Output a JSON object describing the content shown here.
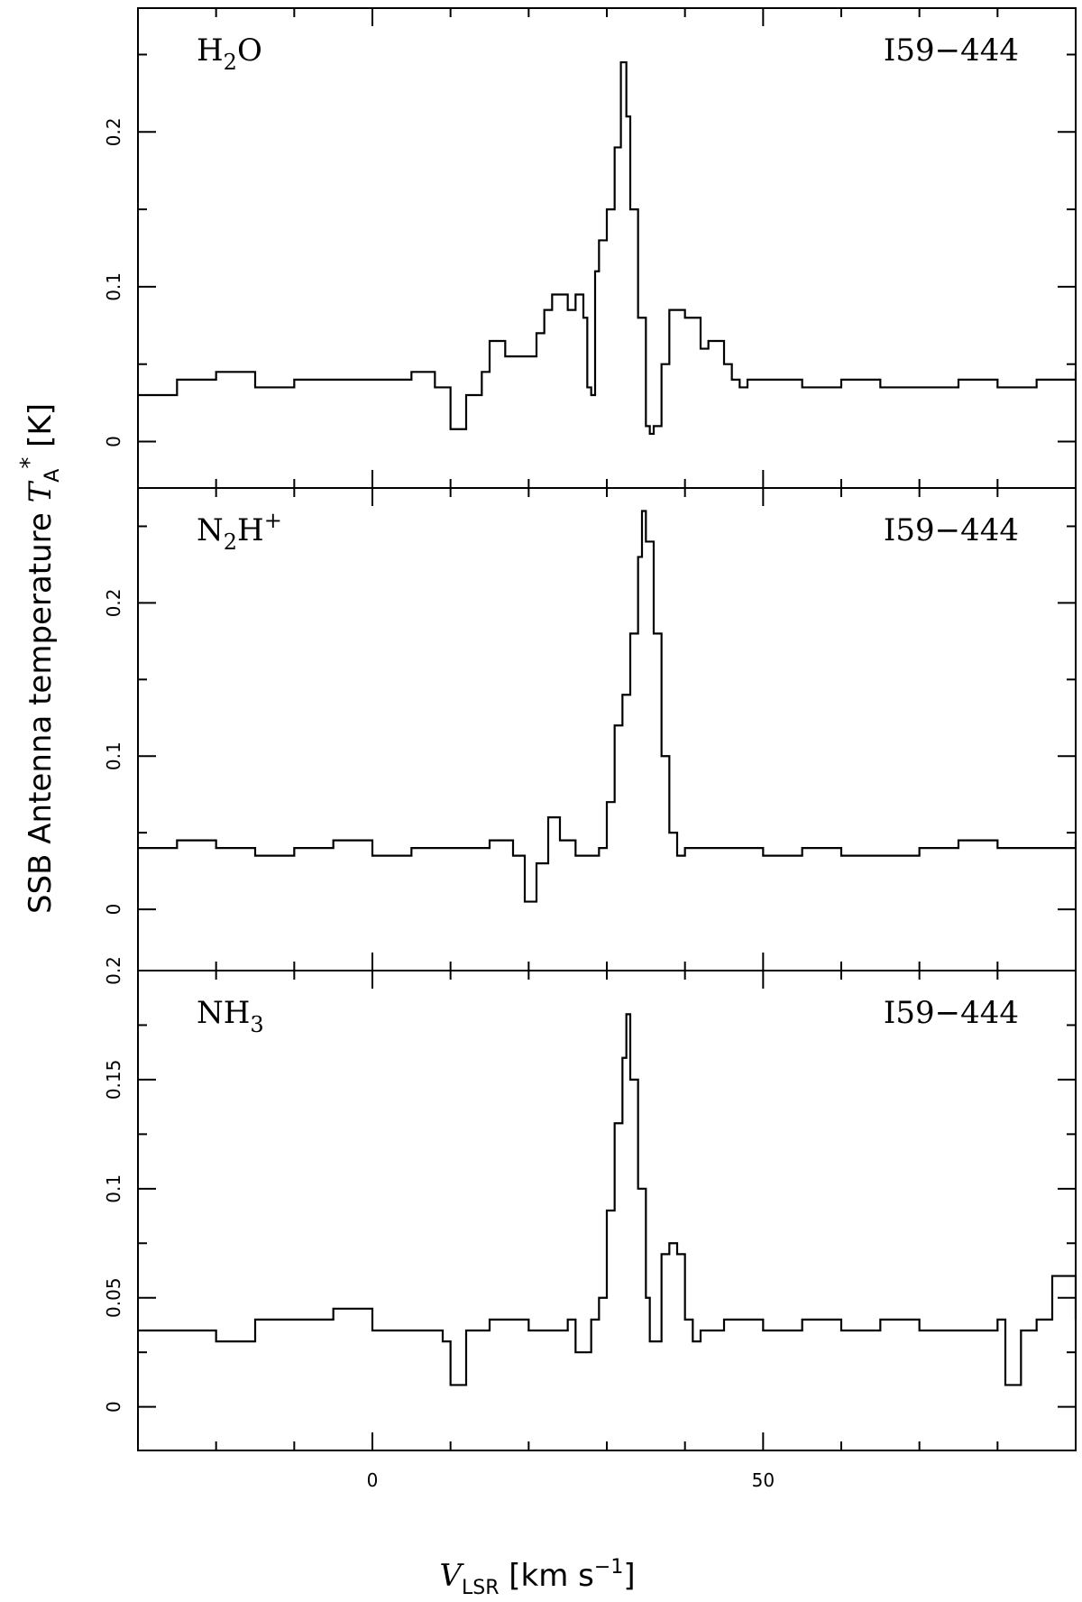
{
  "chart_data": [
    {
      "type": "line",
      "species": {
        "main": "H",
        "sub": "2",
        "rest": "O",
        "sup": ""
      },
      "source": "I59−444",
      "xlim": [
        -30,
        90
      ],
      "ylim": [
        -0.03,
        0.28
      ],
      "yticks": [
        0,
        0.1,
        0.2
      ],
      "ytick_labels": [
        "0",
        "0.1",
        "0.2"
      ],
      "series": [
        {
          "x": [
            -30,
            -25,
            -20,
            -15,
            -10,
            -5,
            0,
            5,
            8,
            10,
            12,
            14,
            15,
            17,
            19,
            21,
            22,
            23,
            24,
            25,
            26,
            27,
            27.5,
            28,
            28.5,
            29,
            30,
            31,
            31.8,
            32.5,
            33,
            34,
            35,
            35.5,
            36,
            37,
            38,
            39,
            40,
            41,
            42,
            43,
            44,
            45,
            46,
            47,
            48,
            50,
            55,
            60,
            65,
            70,
            75,
            80,
            85,
            90
          ],
          "y": [
            0.03,
            0.04,
            0.045,
            0.035,
            0.04,
            0.04,
            0.04,
            0.045,
            0.035,
            0.008,
            0.03,
            0.045,
            0.065,
            0.055,
            0.055,
            0.07,
            0.085,
            0.095,
            0.095,
            0.085,
            0.095,
            0.08,
            0.035,
            0.03,
            0.11,
            0.13,
            0.15,
            0.19,
            0.245,
            0.21,
            0.15,
            0.08,
            0.01,
            0.005,
            0.01,
            0.05,
            0.085,
            0.085,
            0.08,
            0.08,
            0.06,
            0.065,
            0.065,
            0.05,
            0.04,
            0.035,
            0.04,
            0.04,
            0.035,
            0.04,
            0.035,
            0.035,
            0.04,
            0.035,
            0.04,
            0.045
          ]
        }
      ]
    },
    {
      "type": "line",
      "species": {
        "main": "N",
        "sub": "2",
        "rest": "H",
        "sup": "+"
      },
      "source": "I59−444",
      "xlim": [
        -30,
        90
      ],
      "ylim": [
        -0.04,
        0.275
      ],
      "yticks": [
        0,
        0.1,
        0.2
      ],
      "ytick_labels": [
        "0",
        "0.1",
        "0.2"
      ],
      "series": [
        {
          "x": [
            -30,
            -25,
            -20,
            -15,
            -10,
            -5,
            0,
            5,
            10,
            15,
            18,
            19.5,
            21,
            22.5,
            24,
            26,
            28,
            29,
            30,
            31,
            32,
            33,
            34,
            34.5,
            35,
            36,
            37,
            38,
            39,
            40,
            42,
            45,
            50,
            55,
            60,
            65,
            70,
            75,
            80,
            85,
            90
          ],
          "y": [
            0.04,
            0.045,
            0.04,
            0.035,
            0.04,
            0.045,
            0.035,
            0.04,
            0.04,
            0.045,
            0.035,
            0.005,
            0.03,
            0.06,
            0.045,
            0.035,
            0.035,
            0.04,
            0.07,
            0.12,
            0.14,
            0.18,
            0.23,
            0.26,
            0.24,
            0.18,
            0.1,
            0.05,
            0.035,
            0.04,
            0.04,
            0.04,
            0.035,
            0.04,
            0.035,
            0.035,
            0.04,
            0.045,
            0.04,
            0.04,
            0.045
          ]
        }
      ]
    },
    {
      "type": "line",
      "species": {
        "main": "NH",
        "sub": "3",
        "rest": "",
        "sup": ""
      },
      "source": "I59−444",
      "xlim": [
        -30,
        90
      ],
      "ylim": [
        -0.02,
        0.2
      ],
      "yticks": [
        0,
        0.05,
        0.1,
        0.15,
        0.2
      ],
      "ytick_labels": [
        "0",
        "0.05",
        "0.1",
        "0.15",
        "0.2"
      ],
      "series": [
        {
          "x": [
            -30,
            -25,
            -20,
            -15,
            -10,
            -5,
            0,
            5,
            9,
            10,
            12,
            15,
            20,
            25,
            26,
            28,
            29,
            30,
            31,
            32,
            32.5,
            33,
            34,
            35,
            35.5,
            36.5,
            37,
            38,
            39,
            40,
            41,
            42,
            45,
            50,
            55,
            60,
            65,
            70,
            75,
            80,
            81,
            83,
            85,
            87,
            90
          ],
          "y": [
            0.035,
            0.035,
            0.03,
            0.04,
            0.04,
            0.045,
            0.035,
            0.035,
            0.03,
            0.01,
            0.035,
            0.04,
            0.035,
            0.04,
            0.025,
            0.04,
            0.05,
            0.09,
            0.13,
            0.16,
            0.18,
            0.15,
            0.1,
            0.05,
            0.03,
            0.03,
            0.07,
            0.075,
            0.07,
            0.04,
            0.03,
            0.035,
            0.04,
            0.035,
            0.04,
            0.035,
            0.04,
            0.035,
            0.035,
            0.04,
            0.01,
            0.035,
            0.04,
            0.06,
            0.04
          ]
        }
      ]
    }
  ],
  "xaxis": {
    "ticks": [
      0,
      50
    ],
    "tick_labels": [
      "0",
      "50"
    ],
    "label_main": "V",
    "label_sub": "LSR",
    "label_rest": " [km s",
    "label_sup": "−1",
    "label_end": "]"
  },
  "yaxis": {
    "label_main": "SSB Antenna temperature ",
    "label_T": "T",
    "label_sub": "A",
    "label_sup": "*",
    "label_end": " [K]"
  }
}
